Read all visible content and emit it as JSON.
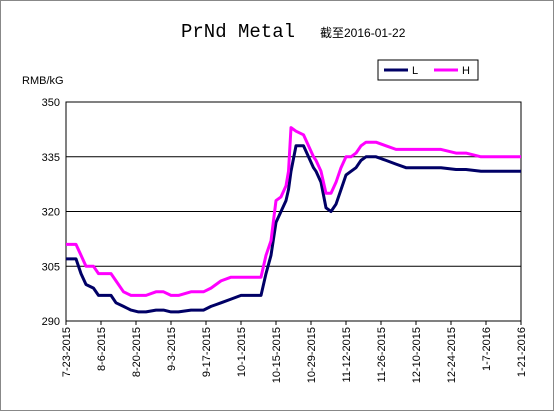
{
  "chart_data": {
    "type": "line",
    "title": "PrNd Metal",
    "subtitle": "截至2016-01-22",
    "y_label": "RMB/kG",
    "x": [
      "2015-07-23",
      "2015-07-27",
      "2015-07-29",
      "2015-07-31",
      "2015-08-03",
      "2015-08-05",
      "2015-08-10",
      "2015-08-12",
      "2015-08-15",
      "2015-08-18",
      "2015-08-21",
      "2015-08-24",
      "2015-08-28",
      "2015-08-31",
      "2015-09-03",
      "2015-09-06",
      "2015-09-11",
      "2015-09-16",
      "2015-09-19",
      "2015-09-21",
      "2015-09-23",
      "2015-09-27",
      "2015-10-01",
      "2015-10-05",
      "2015-10-09",
      "2015-10-11",
      "2015-10-13",
      "2015-10-15",
      "2015-10-17",
      "2015-10-19",
      "2015-10-20",
      "2015-10-21",
      "2015-10-23",
      "2015-10-26",
      "2015-10-28",
      "2015-10-30",
      "2015-10-31",
      "2015-11-02",
      "2015-11-04",
      "2015-11-06",
      "2015-11-08",
      "2015-11-10",
      "2015-11-12",
      "2015-11-14",
      "2015-11-16",
      "2015-11-18",
      "2015-11-20",
      "2015-11-24",
      "2015-11-28",
      "2015-12-02",
      "2015-12-06",
      "2015-12-10",
      "2015-12-14",
      "2015-12-20",
      "2015-12-26",
      "2015-12-30",
      "2016-01-05",
      "2016-01-09",
      "2016-01-14",
      "2016-01-21"
    ],
    "series": [
      {
        "name": "L",
        "color": "#000066",
        "values": [
          307,
          307,
          303,
          300,
          299,
          297,
          297,
          295,
          294,
          293,
          292.5,
          292.5,
          293,
          293,
          292.5,
          292.5,
          293,
          293,
          294,
          294.5,
          295,
          296,
          297,
          297,
          297,
          303,
          308,
          317,
          320,
          323,
          326,
          331,
          338,
          338,
          335,
          332,
          331,
          328,
          321,
          320,
          322,
          326,
          330,
          331,
          332,
          334,
          335,
          335,
          334,
          333,
          332,
          332,
          332,
          332,
          331.5,
          331.5,
          331,
          331,
          331,
          331
        ]
      },
      {
        "name": "H",
        "color": "#ff00ff",
        "values": [
          311,
          311,
          308,
          305,
          305,
          303,
          303,
          301,
          298,
          297,
          297,
          297,
          298,
          298,
          297,
          297,
          298,
          298,
          299,
          300,
          301,
          302,
          302,
          302,
          302,
          308,
          312,
          323,
          324,
          327,
          331,
          343,
          342,
          341,
          338,
          335,
          334,
          331,
          325,
          325,
          328,
          332,
          335,
          335,
          336,
          338,
          339,
          339,
          338,
          337,
          337,
          337,
          337,
          337,
          336,
          336,
          335,
          335,
          335,
          335
        ]
      }
    ],
    "xlim": [
      "2015-07-23",
      "2016-01-21"
    ],
    "xticks": [
      {
        "value": "2015-07-23",
        "label": "7-23-2015"
      },
      {
        "value": "2015-08-06",
        "label": "8-6-2015"
      },
      {
        "value": "2015-08-20",
        "label": "8-20-2015"
      },
      {
        "value": "2015-09-03",
        "label": "9-3-2015"
      },
      {
        "value": "2015-09-17",
        "label": "9-17-2015"
      },
      {
        "value": "2015-10-01",
        "label": "10-1-2015"
      },
      {
        "value": "2015-10-15",
        "label": "10-15-2015"
      },
      {
        "value": "2015-10-29",
        "label": "10-29-2015"
      },
      {
        "value": "2015-11-12",
        "label": "11-12-2015"
      },
      {
        "value": "2015-11-26",
        "label": "11-26-2015"
      },
      {
        "value": "2015-12-10",
        "label": "12-10-2015"
      },
      {
        "value": "2015-12-24",
        "label": "12-24-2015"
      },
      {
        "value": "2016-01-07",
        "label": "1-7-2016"
      },
      {
        "value": "2016-01-21",
        "label": "1-21-2016"
      }
    ],
    "ylim": [
      290,
      350
    ],
    "yticks": [
      290,
      305,
      320,
      335,
      350
    ],
    "grid": true,
    "legend": "top-right"
  }
}
